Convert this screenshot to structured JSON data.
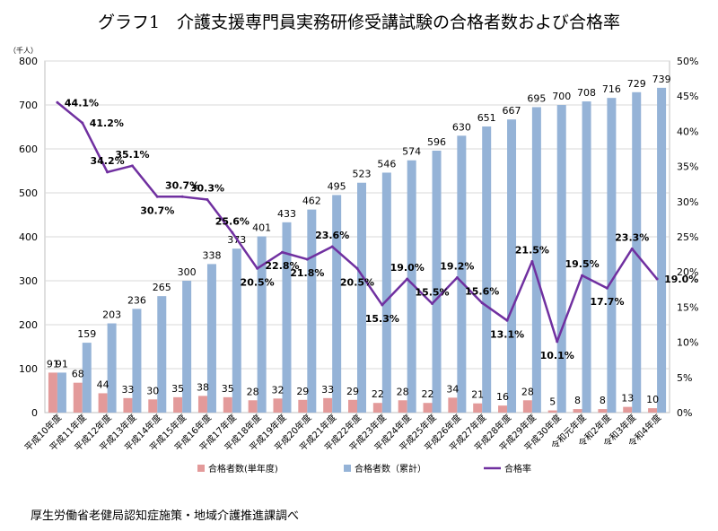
{
  "title": "グラフ1　介護支援専門員実務研修受講試験の合格者数および合格率",
  "source": "厚生労働省老健局認知症施策・地域介護推進課調べ",
  "chart_data": {
    "type": "bar",
    "title": "グラフ1　介護支援専門員実務研修受講試験の合格者数および合格率",
    "y_unit_label": "（千人）",
    "ylim": [
      0,
      800
    ],
    "y_ticks": [
      0,
      100,
      200,
      300,
      400,
      500,
      600,
      700,
      800
    ],
    "y2lim": [
      0,
      50
    ],
    "y2_ticks": [
      "0%",
      "5%",
      "10%",
      "15%",
      "20%",
      "25%",
      "30%",
      "35%",
      "40%",
      "45%",
      "50%"
    ],
    "grid": true,
    "legend_position": "bottom",
    "categories": [
      "平成10年度",
      "平成11年度",
      "平成12年度",
      "平成13年度",
      "平成14年度",
      "平成15年度",
      "平成16年度",
      "平成17年度",
      "平成18年度",
      "平成19年度",
      "平成20年度",
      "平成21年度",
      "平成22年度",
      "平成23年度",
      "平成24年度",
      "平成25年度",
      "平成26年度",
      "平成27年度",
      "平成28年度",
      "平成29年度",
      "平成30年度",
      "令和元年度",
      "令和2年度",
      "令和3年度",
      "令和4年度"
    ],
    "series": [
      {
        "name": "合格者数(単年度)",
        "type": "bar",
        "axis": "left",
        "color": "#e39a9a",
        "values": [
          91,
          68,
          44,
          33,
          30,
          35,
          38,
          35,
          28,
          32,
          29,
          33,
          29,
          22,
          28,
          22,
          34,
          21,
          16,
          28,
          5,
          8,
          8,
          13,
          10
        ]
      },
      {
        "name": "合格者数（累計）",
        "type": "bar",
        "axis": "left",
        "color": "#95b3d7",
        "values": [
          91,
          159,
          203,
          236,
          265,
          300,
          338,
          373,
          401,
          433,
          462,
          495,
          523,
          546,
          574,
          596,
          630,
          651,
          667,
          695,
          700,
          708,
          716,
          729,
          739
        ]
      },
      {
        "name": "合格率",
        "type": "line",
        "axis": "right",
        "color": "#7030a0",
        "values": [
          44.1,
          41.2,
          34.2,
          35.1,
          30.7,
          30.7,
          30.3,
          25.6,
          20.5,
          22.8,
          21.8,
          23.6,
          20.5,
          15.3,
          19.0,
          15.5,
          19.2,
          15.6,
          13.1,
          21.5,
          10.1,
          19.5,
          17.7,
          23.3,
          19.0
        ],
        "labels": [
          "44.1%",
          "41.2%",
          "34.2%",
          "35.1%",
          "30.7%",
          "30.7%",
          "30.3%",
          "25.6%",
          "20.5%",
          "22.8%",
          "21.8%",
          "23.6%",
          "20.5%",
          "15.3%",
          "19.0%",
          "15.5%",
          "19.2%",
          "15.6%",
          "13.1%",
          "21.5%",
          "10.1%",
          "19.5%",
          "17.7%",
          "23.3%",
          "19.0%"
        ]
      }
    ]
  }
}
